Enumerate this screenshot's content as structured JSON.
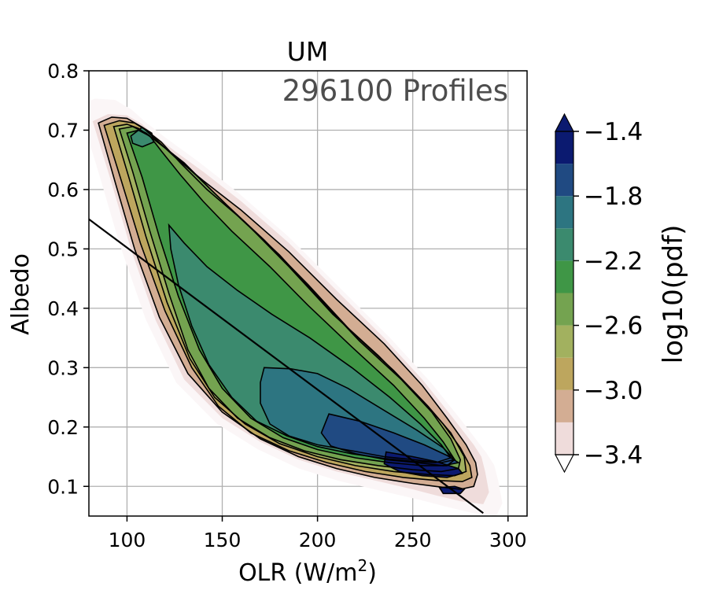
{
  "chart_data": {
    "type": "contour",
    "title": "UM",
    "annotation": "296100 Profiles",
    "xlabel_main": "OLR (W/m",
    "xlabel_sup": "2",
    "xlabel_close": ")",
    "ylabel": "Albedo",
    "xlim": [
      80,
      310
    ],
    "ylim": [
      0.05,
      0.8
    ],
    "xticks": [
      100,
      150,
      200,
      250,
      300
    ],
    "yticks": [
      0.1,
      0.2,
      0.3,
      0.4,
      0.5,
      0.6,
      0.7,
      0.8
    ],
    "xtick_labels": [
      "100",
      "150",
      "200",
      "250",
      "300"
    ],
    "ytick_labels": [
      "0.1",
      "0.2",
      "0.3",
      "0.4",
      "0.5",
      "0.6",
      "0.7",
      "0.8"
    ],
    "grid": true,
    "colorbar": {
      "label": "log10(pdf)",
      "levels": [
        -3.4,
        -3.2,
        -3.0,
        -2.8,
        -2.6,
        -2.4,
        -2.2,
        -2.0,
        -1.8,
        -1.6,
        -1.4
      ],
      "tick_values": [
        -3.4,
        -3.0,
        -2.6,
        -2.2,
        -1.8,
        -1.4
      ],
      "tick_labels": [
        "−3.4",
        "−3.0",
        "−2.6",
        "−2.2",
        "−1.8",
        "−1.4"
      ],
      "colors": [
        "#efdcdb",
        "#d3ad93",
        "#bda65e",
        "#a2b15f",
        "#74a350",
        "#3f9646",
        "#3b8a6e",
        "#2d7581",
        "#204a82",
        "#0b1a70"
      ],
      "extend": "both"
    },
    "contour_levels": [
      {
        "value": -3.4,
        "polygon": [
          [
            82,
            0.715
          ],
          [
            90,
            0.727
          ],
          [
            100,
            0.725
          ],
          [
            108,
            0.71
          ],
          [
            115,
            0.69
          ],
          [
            125,
            0.665
          ],
          [
            140,
            0.63
          ],
          [
            160,
            0.58
          ],
          [
            185,
            0.51
          ],
          [
            210,
            0.43
          ],
          [
            235,
            0.35
          ],
          [
            255,
            0.28
          ],
          [
            270,
            0.22
          ],
          [
            282,
            0.17
          ],
          [
            286,
            0.15
          ],
          [
            288,
            0.125
          ],
          [
            290,
            0.09
          ],
          [
            287,
            0.07
          ],
          [
            275,
            0.075
          ],
          [
            262,
            0.085
          ],
          [
            250,
            0.095
          ],
          [
            230,
            0.11
          ],
          [
            210,
            0.125
          ],
          [
            190,
            0.145
          ],
          [
            170,
            0.175
          ],
          [
            150,
            0.215
          ],
          [
            130,
            0.28
          ],
          [
            115,
            0.38
          ],
          [
            102,
            0.5
          ],
          [
            92,
            0.61
          ]
        ]
      },
      {
        "value": -3.2,
        "polygon": [
          [
            85,
            0.712
          ],
          [
            92,
            0.722
          ],
          [
            100,
            0.72
          ],
          [
            108,
            0.705
          ],
          [
            115,
            0.685
          ],
          [
            125,
            0.655
          ],
          [
            140,
            0.615
          ],
          [
            160,
            0.565
          ],
          [
            185,
            0.495
          ],
          [
            210,
            0.415
          ],
          [
            235,
            0.34
          ],
          [
            255,
            0.27
          ],
          [
            268,
            0.215
          ],
          [
            278,
            0.17
          ],
          [
            283,
            0.14
          ],
          [
            284,
            0.12
          ],
          [
            282,
            0.1
          ],
          [
            275,
            0.095
          ],
          [
            262,
            0.1
          ],
          [
            250,
            0.105
          ],
          [
            230,
            0.115
          ],
          [
            210,
            0.13
          ],
          [
            190,
            0.15
          ],
          [
            170,
            0.18
          ],
          [
            150,
            0.225
          ],
          [
            132,
            0.29
          ],
          [
            117,
            0.385
          ],
          [
            104,
            0.5
          ],
          [
            94,
            0.61
          ]
        ]
      },
      {
        "value": -3.0,
        "polygon": [
          [
            88,
            0.708
          ],
          [
            96,
            0.716
          ],
          [
            104,
            0.712
          ],
          [
            110,
            0.7
          ],
          [
            118,
            0.68
          ],
          [
            128,
            0.645
          ],
          [
            142,
            0.6
          ],
          [
            162,
            0.545
          ],
          [
            185,
            0.47
          ],
          [
            208,
            0.39
          ],
          [
            232,
            0.32
          ],
          [
            252,
            0.255
          ],
          [
            266,
            0.205
          ],
          [
            275,
            0.165
          ],
          [
            280,
            0.135
          ],
          [
            281,
            0.115
          ],
          [
            276,
            0.108
          ],
          [
            262,
            0.11
          ],
          [
            245,
            0.115
          ],
          [
            225,
            0.125
          ],
          [
            205,
            0.14
          ],
          [
            185,
            0.16
          ],
          [
            165,
            0.19
          ],
          [
            148,
            0.235
          ],
          [
            134,
            0.3
          ],
          [
            120,
            0.395
          ],
          [
            107,
            0.51
          ],
          [
            97,
            0.615
          ]
        ]
      },
      {
        "value": -2.8,
        "polygon": [
          [
            93,
            0.706
          ],
          [
            100,
            0.71
          ],
          [
            106,
            0.703
          ],
          [
            114,
            0.685
          ],
          [
            124,
            0.66
          ],
          [
            136,
            0.625
          ],
          [
            152,
            0.575
          ],
          [
            172,
            0.515
          ],
          [
            195,
            0.44
          ],
          [
            218,
            0.36
          ],
          [
            240,
            0.295
          ],
          [
            258,
            0.235
          ],
          [
            270,
            0.19
          ],
          [
            277,
            0.15
          ],
          [
            278,
            0.125
          ],
          [
            272,
            0.118
          ],
          [
            258,
            0.12
          ],
          [
            240,
            0.125
          ],
          [
            220,
            0.135
          ],
          [
            200,
            0.15
          ],
          [
            180,
            0.172
          ],
          [
            162,
            0.205
          ],
          [
            146,
            0.25
          ],
          [
            133,
            0.315
          ],
          [
            121,
            0.41
          ],
          [
            110,
            0.52
          ],
          [
            101,
            0.62
          ]
        ]
      },
      {
        "value": -2.6,
        "polygon": [
          [
            96,
            0.702
          ],
          [
            103,
            0.706
          ],
          [
            110,
            0.695
          ],
          [
            118,
            0.675
          ],
          [
            130,
            0.645
          ],
          [
            144,
            0.6
          ],
          [
            160,
            0.55
          ],
          [
            180,
            0.49
          ],
          [
            200,
            0.42
          ],
          [
            222,
            0.345
          ],
          [
            244,
            0.28
          ],
          [
            260,
            0.225
          ],
          [
            270,
            0.18
          ],
          [
            275,
            0.145
          ],
          [
            274,
            0.13
          ],
          [
            265,
            0.125
          ],
          [
            250,
            0.128
          ],
          [
            232,
            0.135
          ],
          [
            212,
            0.145
          ],
          [
            193,
            0.16
          ],
          [
            175,
            0.182
          ],
          [
            158,
            0.215
          ],
          [
            143,
            0.265
          ],
          [
            132,
            0.33
          ],
          [
            122,
            0.425
          ],
          [
            112,
            0.53
          ],
          [
            103,
            0.63
          ]
        ]
      },
      {
        "value": -2.4,
        "polygon": [
          [
            100,
            0.695
          ],
          [
            106,
            0.7
          ],
          [
            112,
            0.69
          ],
          [
            118,
            0.665
          ],
          [
            128,
            0.625
          ],
          [
            140,
            0.58
          ],
          [
            155,
            0.53
          ],
          [
            175,
            0.47
          ],
          [
            195,
            0.405
          ],
          [
            218,
            0.335
          ],
          [
            240,
            0.27
          ],
          [
            256,
            0.215
          ],
          [
            266,
            0.175
          ],
          [
            272,
            0.145
          ],
          [
            268,
            0.135
          ],
          [
            255,
            0.135
          ],
          [
            238,
            0.14
          ],
          [
            220,
            0.148
          ],
          [
            200,
            0.162
          ],
          [
            182,
            0.182
          ],
          [
            165,
            0.215
          ],
          [
            150,
            0.265
          ],
          [
            138,
            0.33
          ],
          [
            127,
            0.42
          ],
          [
            117,
            0.52
          ],
          [
            108,
            0.62
          ]
        ]
      },
      {
        "value": -2.2,
        "polygon": [
          [
            122,
            0.54
          ],
          [
            130,
            0.51
          ],
          [
            142,
            0.47
          ],
          [
            158,
            0.43
          ],
          [
            176,
            0.39
          ],
          [
            196,
            0.35
          ],
          [
            218,
            0.3
          ],
          [
            238,
            0.25
          ],
          [
            254,
            0.205
          ],
          [
            265,
            0.17
          ],
          [
            270,
            0.148
          ],
          [
            262,
            0.14
          ],
          [
            250,
            0.142
          ],
          [
            235,
            0.147
          ],
          [
            218,
            0.155
          ],
          [
            200,
            0.167
          ],
          [
            184,
            0.185
          ],
          [
            168,
            0.21
          ],
          [
            155,
            0.25
          ],
          [
            143,
            0.305
          ],
          [
            134,
            0.37
          ],
          [
            127,
            0.44
          ],
          [
            123,
            0.5
          ]
        ]
      },
      {
        "value": -2.0,
        "polygon": [
          [
            172,
            0.3
          ],
          [
            186,
            0.298
          ],
          [
            200,
            0.29
          ],
          [
            216,
            0.265
          ],
          [
            234,
            0.23
          ],
          [
            252,
            0.195
          ],
          [
            266,
            0.165
          ],
          [
            272,
            0.145
          ],
          [
            265,
            0.14
          ],
          [
            250,
            0.145
          ],
          [
            235,
            0.15
          ],
          [
            218,
            0.16
          ],
          [
            200,
            0.17
          ],
          [
            185,
            0.185
          ],
          [
            175,
            0.205
          ],
          [
            170,
            0.24
          ],
          [
            170,
            0.275
          ]
        ]
      },
      {
        "value": -1.8,
        "polygon": [
          [
            206,
            0.222
          ],
          [
            222,
            0.21
          ],
          [
            240,
            0.19
          ],
          [
            256,
            0.17
          ],
          [
            268,
            0.152
          ],
          [
            274,
            0.14
          ],
          [
            266,
            0.135
          ],
          [
            252,
            0.14
          ],
          [
            236,
            0.145
          ],
          [
            220,
            0.155
          ],
          [
            207,
            0.168
          ],
          [
            202,
            0.19
          ]
        ]
      },
      {
        "value": -1.6,
        "polygon": [
          [
            236,
            0.158
          ],
          [
            250,
            0.15
          ],
          [
            262,
            0.142
          ],
          [
            274,
            0.13
          ],
          [
            276,
            0.122
          ],
          [
            268,
            0.115
          ],
          [
            255,
            0.118
          ],
          [
            243,
            0.125
          ],
          [
            235,
            0.138
          ]
        ]
      },
      {
        "value": -1.4,
        "polygon": [
          [
            264,
            0.098
          ],
          [
            272,
            0.1
          ],
          [
            277,
            0.095
          ],
          [
            275,
            0.088
          ],
          [
            266,
            0.088
          ]
        ]
      }
    ],
    "extra_closed_contours": [
      {
        "value": -2.2,
        "polygon": [
          [
            102,
            0.69
          ],
          [
            108,
            0.705
          ],
          [
            113,
            0.695
          ],
          [
            114,
            0.68
          ],
          [
            108,
            0.672
          ],
          [
            103,
            0.678
          ]
        ]
      }
    ],
    "fit_line": {
      "x": [
        80,
        287
      ],
      "y": [
        0.55,
        0.055
      ]
    }
  }
}
